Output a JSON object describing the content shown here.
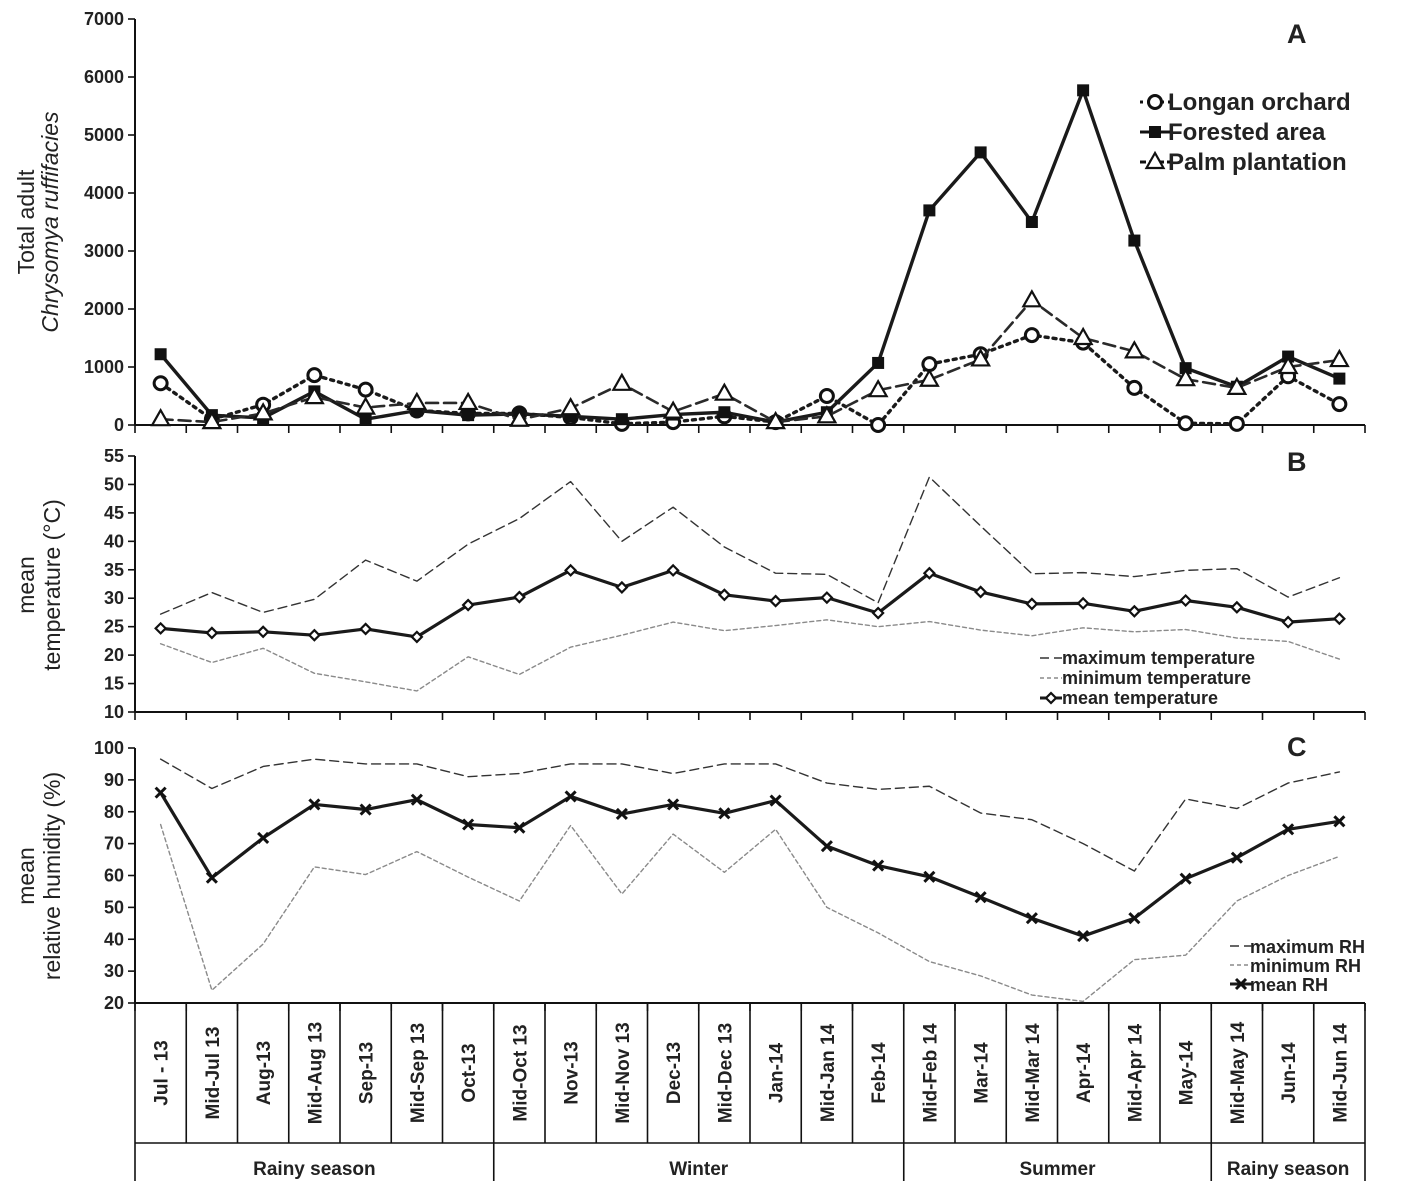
{
  "categories": [
    "Jul - 13",
    "Mid-Jul 13",
    "Aug-13",
    "Mid-Aug 13",
    "Sep-13",
    "Mid-Sep 13",
    "Oct-13",
    "Mid-Oct 13",
    "Nov-13",
    "Mid-Nov 13",
    "Dec-13",
    "Mid-Dec 13",
    "Jan-14",
    "Mid-Jan 14",
    "Feb-14",
    "Mid-Feb 14",
    "Mar-14",
    "Mid-Mar 14",
    "Apr-14",
    "Mid-Apr 14",
    "May-14",
    "Mid-May 14",
    "Jun-14",
    "Mid-Jun 14"
  ],
  "seasons": [
    {
      "label": "Rainy season",
      "start": 0,
      "end": 6
    },
    {
      "label": "Winter",
      "start": 7,
      "end": 14
    },
    {
      "label": "Summer",
      "start": 15,
      "end": 20
    },
    {
      "label": "Rainy season",
      "start": 21,
      "end": 23
    }
  ],
  "chart_data": [
    {
      "panel": "A",
      "type": "line",
      "ylabel_line1": "Total adult",
      "ylabel_line2": "Chrysomya ruffifacies",
      "ylim": [
        0,
        7000
      ],
      "yticks": [
        0,
        1000,
        2000,
        3000,
        4000,
        5000,
        6000,
        7000
      ],
      "legend_position": "top-right",
      "series": [
        {
          "name": "Longan orchard",
          "marker": "circle",
          "line": "dotted",
          "values": [
            720,
            100,
            350,
            860,
            610,
            250,
            200,
            200,
            130,
            20,
            50,
            150,
            50,
            500,
            0,
            1050,
            1220,
            1550,
            1420,
            640,
            30,
            20,
            840,
            360
          ]
        },
        {
          "name": "Forested area",
          "marker": "square",
          "line": "solid",
          "values": [
            1220,
            170,
            120,
            580,
            100,
            250,
            170,
            190,
            150,
            100,
            180,
            220,
            50,
            220,
            1070,
            3700,
            4700,
            3500,
            5770,
            3180,
            980,
            660,
            1180,
            800
          ]
        },
        {
          "name": "Palm plantation",
          "marker": "triangle",
          "line": "dashed",
          "values": [
            100,
            50,
            200,
            480,
            300,
            380,
            380,
            90,
            290,
            710,
            230,
            540,
            50,
            150,
            600,
            780,
            1130,
            2150,
            1500,
            1270,
            790,
            640,
            1000,
            1120
          ]
        }
      ]
    },
    {
      "panel": "B",
      "type": "line",
      "ylabel_line1": "mean",
      "ylabel_line2": "temperature (°C)",
      "ylim": [
        10,
        55
      ],
      "yticks": [
        10,
        15,
        20,
        25,
        30,
        35,
        40,
        45,
        50,
        55
      ],
      "legend_position": "bottom-right",
      "series": [
        {
          "name": "maximum temperature",
          "line": "dashed",
          "values": [
            27.2,
            31,
            27.5,
            29.8,
            36.7,
            33,
            39.5,
            44,
            50.5,
            40,
            46,
            39,
            34.4,
            34.2,
            29.2,
            51.3,
            42.7,
            34.3,
            34.5,
            33.8,
            34.9,
            35.2,
            30.2,
            33.6
          ]
        },
        {
          "name": "minimum temperature",
          "line": "dotted",
          "values": [
            22,
            18.7,
            21.2,
            16.8,
            15.3,
            13.7,
            19.7,
            16.6,
            21.4,
            23.5,
            25.8,
            24.3,
            25.2,
            26.2,
            25,
            25.9,
            24.4,
            23.4,
            24.8,
            24.1,
            24.5,
            23,
            22.4,
            19.3
          ]
        },
        {
          "name": "mean temperature",
          "marker": "diamond",
          "line": "solid",
          "values": [
            24.7,
            23.9,
            24.1,
            23.5,
            24.6,
            23.2,
            28.8,
            30.2,
            34.9,
            31.9,
            34.9,
            30.6,
            29.5,
            30.1,
            27.4,
            34.4,
            31.1,
            29,
            29.1,
            27.7,
            29.6,
            28.4,
            25.8,
            26.4
          ]
        }
      ]
    },
    {
      "panel": "C",
      "type": "line",
      "ylabel_line1": "mean",
      "ylabel_line2": "relative humidity (%)",
      "ylim": [
        20,
        100
      ],
      "yticks": [
        20,
        30,
        40,
        50,
        60,
        70,
        80,
        90,
        100
      ],
      "legend_position": "bottom-right",
      "series": [
        {
          "name": "maximum RH",
          "line": "dashed",
          "values": [
            96.5,
            87.3,
            94.2,
            96.5,
            95,
            95,
            91,
            92,
            95,
            95,
            92,
            95,
            95,
            89,
            87,
            88,
            79.6,
            77.5,
            70,
            61.4,
            84,
            81,
            89,
            92.5
          ]
        },
        {
          "name": "minimum RH",
          "line": "dotted",
          "values": [
            76,
            24,
            38.5,
            62.7,
            60.3,
            67.5,
            59.5,
            52,
            75.7,
            54.2,
            73,
            61,
            74.5,
            50,
            42,
            33,
            28.5,
            22.5,
            20.5,
            33.6,
            35,
            52,
            60,
            66
          ]
        },
        {
          "name": "mean RH",
          "marker": "x",
          "line": "solid",
          "values": [
            86,
            59.3,
            71.8,
            82.3,
            80.7,
            83.8,
            76,
            75,
            84.8,
            79.3,
            82.3,
            79.5,
            83.5,
            69.2,
            63.1,
            59.6,
            53.2,
            46.6,
            41,
            46.6,
            59,
            65.6,
            74.5,
            77
          ]
        }
      ]
    }
  ]
}
